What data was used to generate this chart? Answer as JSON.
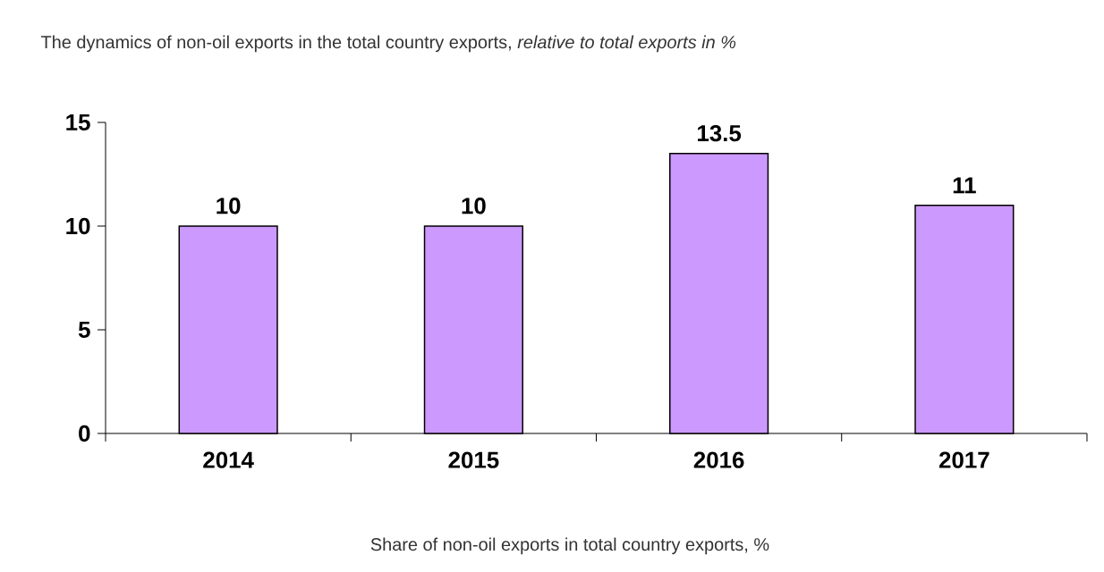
{
  "chart_data": {
    "type": "bar",
    "title": "The dynamics of non-oil exports in the total country exports, *relative to total exports in %*",
    "xlabel": "Share of non-oil exports in total country exports, %",
    "categories": [
      "2014",
      "2015",
      "2016",
      "2017"
    ],
    "values": [
      10,
      10,
      13.5,
      11
    ],
    "color": "#cc99ff",
    "ylim": [
      0,
      15
    ],
    "yticks": [
      0,
      5,
      10,
      15
    ],
    "data_labels": true
  }
}
